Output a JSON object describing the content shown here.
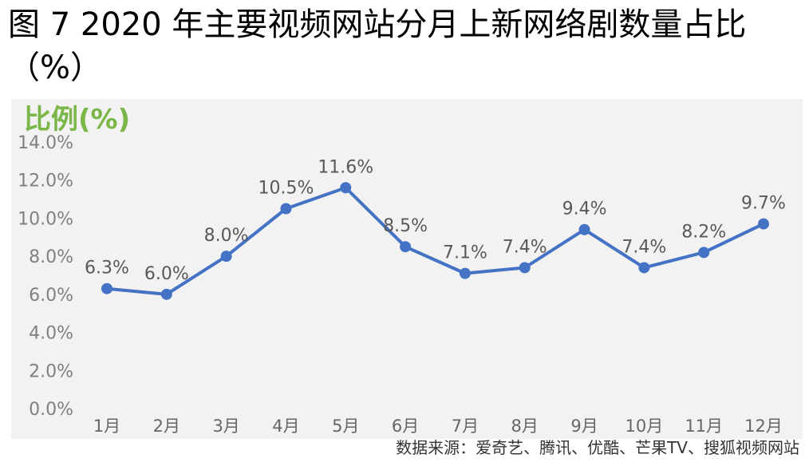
{
  "title_line1": "图 7 2020 年主要视频网站分月上新网络剧数量占比",
  "title_line2": "（%）",
  "source": "数据来源：爱奇艺、腾讯、优酷、芒果TV、搜狐视频网站",
  "colors": {
    "line": "#4472c4",
    "ylabel": "#7ab648",
    "panel": "#f2f2f2"
  },
  "chart_data": {
    "type": "line",
    "ylabel": "比例(%)",
    "categories": [
      "1月",
      "2月",
      "3月",
      "4月",
      "5月",
      "6月",
      "7月",
      "8月",
      "9月",
      "10月",
      "11月",
      "12月"
    ],
    "series": [
      {
        "values": [
          6.3,
          6.0,
          8.0,
          10.5,
          11.6,
          8.5,
          7.1,
          7.4,
          9.4,
          7.4,
          8.2,
          9.7
        ]
      }
    ],
    "data_labels": [
      "6.3%",
      "6.0%",
      "8.0%",
      "10.5%",
      "11.6%",
      "8.5%",
      "7.1%",
      "7.4%",
      "9.4%",
      "7.4%",
      "8.2%",
      "9.7%"
    ],
    "yticks": [
      "0.0%",
      "2.0%",
      "4.0%",
      "6.0%",
      "8.0%",
      "10.0%",
      "12.0%",
      "14.0%"
    ],
    "ylim": [
      0,
      14
    ],
    "grid": false
  }
}
